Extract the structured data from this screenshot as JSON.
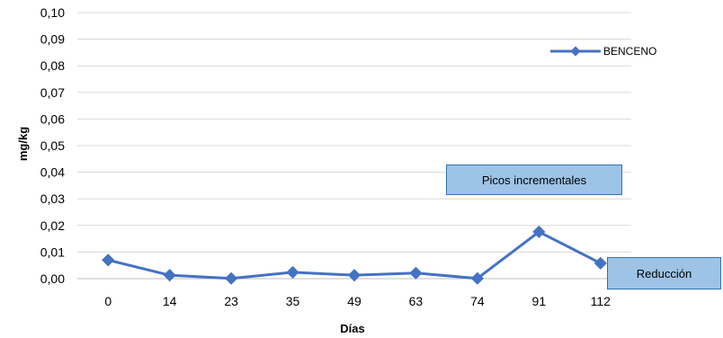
{
  "chart_data": {
    "type": "line",
    "title": "",
    "xlabel": "Días",
    "ylabel": "mg/kg",
    "categories": [
      "0",
      "14",
      "23",
      "35",
      "49",
      "63",
      "74",
      "91",
      "112"
    ],
    "series": [
      {
        "name": "BENCENO",
        "values": [
          0.007,
          0.0013,
          0.0001,
          0.0024,
          0.0013,
          0.0021,
          0.0001,
          0.0176,
          0.0058
        ]
      }
    ],
    "ylim": [
      0,
      0.1
    ],
    "yticks": [
      "0,00",
      "0,01",
      "0,02",
      "0,03",
      "0,04",
      "0,05",
      "0,06",
      "0,07",
      "0,08",
      "0,09",
      "0,10"
    ],
    "grid": true,
    "legend_position": "top-right",
    "series_color": "#4472c4",
    "annotations": [
      {
        "text": "Picos incrementales"
      },
      {
        "text": "Reducción"
      }
    ]
  }
}
